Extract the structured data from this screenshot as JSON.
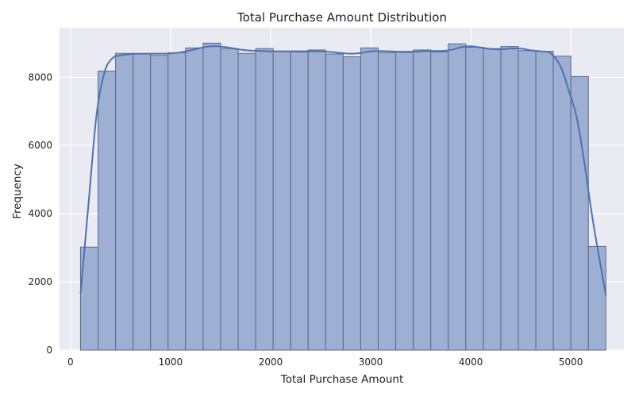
{
  "chart_data": {
    "type": "bar",
    "title": "Total Purchase Amount Distribution",
    "xlabel": "Total Purchase Amount",
    "ylabel": "Frequency",
    "xlim": [
      -110,
      5530
    ],
    "ylim": [
      0,
      9450
    ],
    "xticks": [
      0,
      1000,
      2000,
      3000,
      4000,
      5000
    ],
    "yticks": [
      0,
      2000,
      4000,
      6000,
      8000
    ],
    "grid": true,
    "bin_start": 100,
    "bin_width": 175,
    "values": [
      3020,
      8180,
      8700,
      8680,
      8640,
      8720,
      8860,
      9000,
      8840,
      8700,
      8840,
      8760,
      8740,
      8800,
      8680,
      8600,
      8860,
      8720,
      8760,
      8800,
      8740,
      8980,
      8880,
      8840,
      8900,
      8780,
      8760,
      8620,
      8020,
      3040
    ],
    "kde_x": [
      100,
      180,
      260,
      340,
      420,
      500,
      600,
      700,
      800,
      900,
      1000,
      1100,
      1200,
      1300,
      1400,
      1500,
      1600,
      1700,
      1800,
      1900,
      2000,
      2100,
      2200,
      2300,
      2400,
      2500,
      2600,
      2700,
      2800,
      2900,
      3000,
      3100,
      3200,
      3300,
      3400,
      3500,
      3600,
      3700,
      3800,
      3900,
      4000,
      4100,
      4200,
      4300,
      4400,
      4500,
      4600,
      4700,
      4800,
      4900,
      4980,
      5060,
      5140,
      5220,
      5350
    ],
    "kde_y": [
      1650,
      4300,
      6900,
      8150,
      8560,
      8640,
      8680,
      8690,
      8690,
      8690,
      8700,
      8730,
      8790,
      8860,
      8910,
      8900,
      8860,
      8810,
      8780,
      8770,
      8760,
      8760,
      8760,
      8760,
      8760,
      8760,
      8740,
      8710,
      8690,
      8710,
      8760,
      8770,
      8760,
      8740,
      8740,
      8760,
      8770,
      8770,
      8800,
      8880,
      8910,
      8870,
      8830,
      8820,
      8840,
      8840,
      8790,
      8760,
      8700,
      8300,
      7600,
      6800,
      5400,
      3800,
      1600
    ],
    "colors": {
      "background": "#eaeaf2",
      "grid": "#ffffff",
      "bar_fill": "#9dafd3",
      "bar_edge": "#5a6b85",
      "kde_line": "#4c72b0"
    }
  }
}
